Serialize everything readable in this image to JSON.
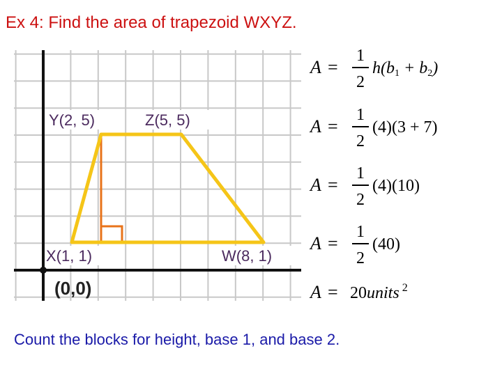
{
  "header": {
    "title": "Ex 4: Find the area of trapezoid WXYZ."
  },
  "graph": {
    "points": [
      {
        "label": "Y(2, 5)"
      },
      {
        "label": "Z(5, 5)"
      },
      {
        "label": "X(1, 1)"
      },
      {
        "label": "W(8, 1)"
      }
    ],
    "origin_label": "(0,0)"
  },
  "formulas": [
    {
      "lhs": "A",
      "equals": "=",
      "numerator": "1",
      "denominator": "2",
      "parts": [
        {
          "text": "h(b"
        },
        {
          "text": "1",
          "sub": true
        },
        {
          "text": " + b"
        },
        {
          "text": "2",
          "sub": true
        },
        {
          "text": ")"
        }
      ]
    },
    {
      "lhs": "A",
      "equals": "=",
      "numerator": "1",
      "denominator": "2",
      "parts": [
        {
          "text": "(4)(3 + 7)"
        }
      ]
    },
    {
      "lhs": "A",
      "equals": "=",
      "numerator": "1",
      "denominator": "2",
      "parts": [
        {
          "text": "(4)(10)"
        }
      ]
    },
    {
      "lhs": "A",
      "equals": "=",
      "numerator": "1",
      "denominator": "2",
      "parts": [
        {
          "text": "(40)"
        }
      ]
    },
    {
      "lhs": "A",
      "equals": "=",
      "parts": [
        {
          "text": "20"
        },
        {
          "text": "units",
          "italic": true
        },
        {
          "text": "2",
          "sup": true
        }
      ]
    }
  ],
  "footer": {
    "text": "Count the blocks for height, base 1, and base 2."
  }
}
